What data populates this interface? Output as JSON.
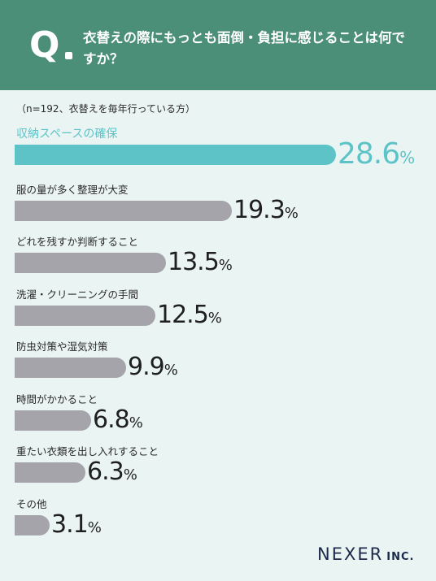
{
  "header": {
    "q_label": "Q",
    "question": "衣替えの際にもっとも面倒・負担に感じることは何ですか？"
  },
  "note": "（n=192、衣替えを毎年行っている方）",
  "brand": {
    "name": "NEXER",
    "suffix": "INC."
  },
  "colors": {
    "header": "#4b8f78",
    "highlight": "#5ec3c7",
    "bar": "#a4a4aa",
    "background": "#eaf4f3"
  },
  "chart_data": {
    "type": "bar",
    "orientation": "horizontal",
    "unit": "%",
    "categories": [
      "収納スペースの確保",
      "服の量が多く整理が大変",
      "どれを残すか判断すること",
      "洗濯・クリーニングの手間",
      "防虫対策や湿気対策",
      "時間がかかること",
      "重たい衣類を出し入れすること",
      "その他"
    ],
    "values": [
      28.6,
      19.3,
      13.5,
      12.5,
      9.9,
      6.8,
      6.3,
      3.1
    ],
    "display_values": [
      "28.6",
      "19.3",
      "13.5",
      "12.5",
      "9.9",
      "6.8",
      "6.3",
      "3.1"
    ],
    "highlight_index": 0,
    "xlim": [
      0,
      28.6
    ]
  }
}
